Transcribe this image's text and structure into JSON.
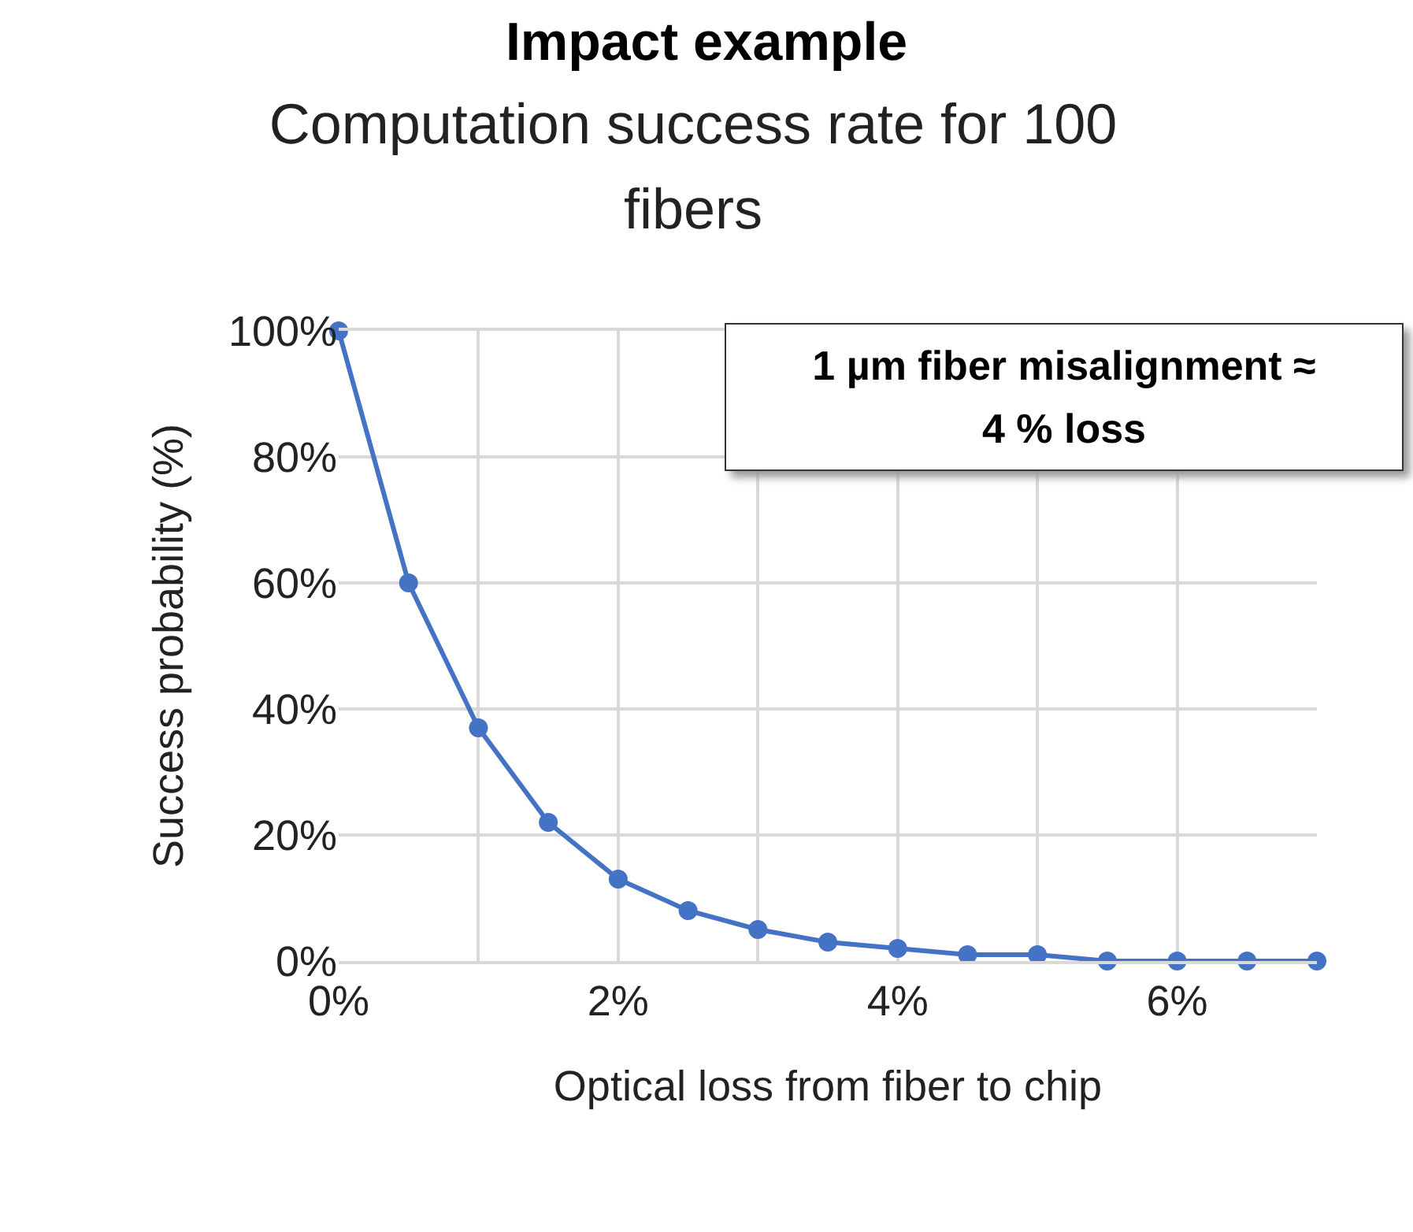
{
  "chart_data": {
    "type": "line",
    "title": "Impact example",
    "subtitle": "Computation success rate for 100 fibers",
    "xlabel": "Optical loss from fiber to chip",
    "ylabel": "Success probability (%)",
    "x": [
      0,
      0.5,
      1,
      1.5,
      2,
      2.5,
      3,
      3.5,
      4,
      4.5,
      5,
      5.5,
      6,
      6.5,
      7
    ],
    "series": [
      {
        "color": "#4472c4",
        "values": [
          100,
          60,
          37,
          22,
          13,
          8,
          5,
          3,
          2,
          1,
          1,
          0,
          0,
          0,
          0
        ]
      }
    ],
    "xlim": [
      0,
      7
    ],
    "ylim": [
      0,
      100
    ],
    "xticks": [
      {
        "value": 0,
        "label": "0%"
      },
      {
        "value": 1,
        "label": null
      },
      {
        "value": 2,
        "label": "2%"
      },
      {
        "value": 3,
        "label": null
      },
      {
        "value": 4,
        "label": "4%"
      },
      {
        "value": 5,
        "label": null
      },
      {
        "value": 6,
        "label": "6%"
      }
    ],
    "yticks": [
      {
        "value": 0,
        "label": "0%"
      },
      {
        "value": 20,
        "label": "20%"
      },
      {
        "value": 40,
        "label": "40%"
      },
      {
        "value": 60,
        "label": "60%"
      },
      {
        "value": 80,
        "label": "80%"
      },
      {
        "value": 100,
        "label": "100%"
      }
    ],
    "annotations": [
      "1 µm fiber misalignment ≈ 4 % loss"
    ],
    "grid": true,
    "legend": false,
    "marker": "circle",
    "line_style": "solid"
  }
}
